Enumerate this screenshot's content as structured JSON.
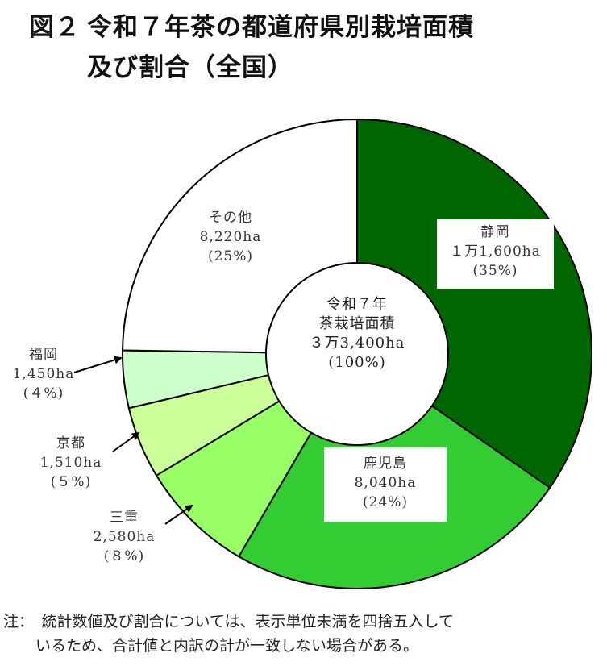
{
  "title": {
    "prefix": "図２",
    "line1": "令和７年茶の都道府県別栽培面積",
    "line2": "及び割合（全国）"
  },
  "center_label": {
    "line1": "令和７年",
    "line2": "茶栽培面積",
    "line3": "３万3,400ha",
    "line4": "(100%)"
  },
  "labels": {
    "shizuoka": {
      "name": "静岡",
      "value": "１万1,600ha",
      "pct": "(35%)"
    },
    "kagoshima": {
      "name": "鹿児島",
      "value": "8,040ha",
      "pct": "(24%)"
    },
    "mie": {
      "name": "三重",
      "value": "2,580ha",
      "pct": "(８%)"
    },
    "kyoto": {
      "name": "京都",
      "value": "1,510ha",
      "pct": "(５%)"
    },
    "fukuoka": {
      "name": "福岡",
      "value": "1,450ha",
      "pct": "(４%)"
    },
    "other": {
      "name": "その他",
      "value": "8,220ha",
      "pct": "(25%)"
    }
  },
  "note": {
    "line1": "注：　統計数値及び割合については、表示単位未満を四捨五入して",
    "line2": "いるため、合計値と内訳の計が一致しない場合がある。"
  },
  "chart_data": {
    "type": "pie",
    "subtype": "donut",
    "title": "図２　令和７年茶の都道府県別栽培面積及び割合（全国）",
    "total": {
      "label": "令和７年茶栽培面積",
      "value_ha": 33400,
      "display": "３万3,400ha",
      "pct": 100
    },
    "unit": "ha",
    "start_angle_deg": 0,
    "direction": "clockwise",
    "categories": [
      "静岡",
      "鹿児島",
      "三重",
      "京都",
      "福岡",
      "その他"
    ],
    "values": [
      11600,
      8040,
      2580,
      1510,
      1450,
      8220
    ],
    "percentages": [
      35,
      24,
      8,
      5,
      4,
      25
    ],
    "colors": [
      "#006600",
      "#33cc33",
      "#99ff66",
      "#ccff99",
      "#ccffcc",
      "#ffffff"
    ],
    "legend": "none (direct labels)",
    "note": "統計数値及び割合については、表示単位未満を四捨五入しているため、合計値と内訳の計が一致しない場合がある。"
  }
}
